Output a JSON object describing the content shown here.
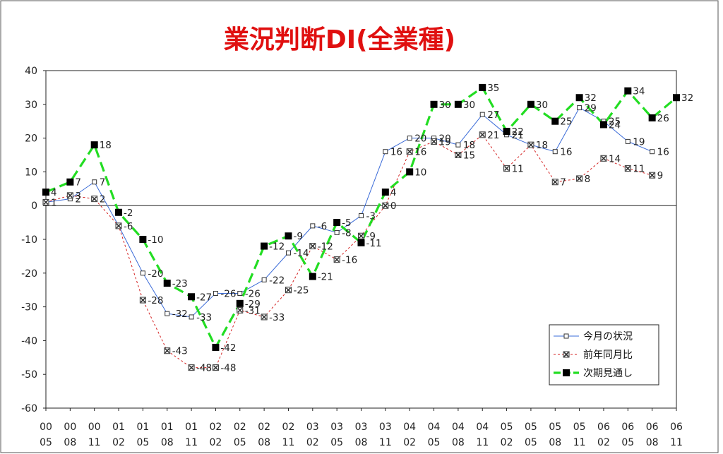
{
  "chart_data": {
    "type": "line",
    "title": "業況判断DI(全業種)",
    "title_color": "#e01010",
    "categories": [
      [
        "00",
        "05"
      ],
      [
        "00",
        "08"
      ],
      [
        "00",
        "11"
      ],
      [
        "01",
        "02"
      ],
      [
        "01",
        "05"
      ],
      [
        "01",
        "08"
      ],
      [
        "01",
        "11"
      ],
      [
        "02",
        "02"
      ],
      [
        "02",
        "05"
      ],
      [
        "02",
        "08"
      ],
      [
        "02",
        "11"
      ],
      [
        "03",
        "02"
      ],
      [
        "03",
        "05"
      ],
      [
        "03",
        "08"
      ],
      [
        "03",
        "11"
      ],
      [
        "04",
        "02"
      ],
      [
        "04",
        "05"
      ],
      [
        "04",
        "08"
      ],
      [
        "04",
        "11"
      ],
      [
        "05",
        "02"
      ],
      [
        "05",
        "05"
      ],
      [
        "05",
        "08"
      ],
      [
        "05",
        "11"
      ],
      [
        "06",
        "02"
      ],
      [
        "06",
        "05"
      ],
      [
        "06",
        "08"
      ],
      [
        "06",
        "11"
      ]
    ],
    "y_ticks": [
      "40",
      "30",
      "20",
      "10",
      "0",
      "-10",
      "-20",
      "-30",
      "-40",
      "-50",
      "-60"
    ],
    "ylim": [
      -60,
      40
    ],
    "y_step": 10,
    "grid": false,
    "legend_position": "bottom-right",
    "series": [
      {
        "name": "今月の状況",
        "color": "#3a6bd8",
        "line_style": "solid",
        "marker": "open-square",
        "values": [
          1,
          2,
          7,
          -6,
          -20,
          -32,
          -33,
          -26,
          -26,
          -22,
          -14,
          -6,
          -8,
          -3,
          16,
          20,
          20,
          18,
          27,
          21,
          18,
          16,
          29,
          25,
          19,
          16,
          null
        ],
        "labels": [
          "1",
          "2",
          "7",
          "-6",
          "-20",
          "-32",
          "-33",
          "-26",
          "-26",
          "-22",
          "-14",
          "-6",
          "-8",
          "-3",
          "16",
          "20",
          "20",
          "18",
          "27",
          "21",
          "18",
          "16",
          "29",
          "25",
          "19",
          "16",
          ""
        ]
      },
      {
        "name": "前年同月比",
        "color": "#d42020",
        "line_style": "dotted",
        "marker": "x-square",
        "values": [
          1,
          3,
          2,
          -6,
          -28,
          -43,
          -48,
          -48,
          -31,
          -33,
          -25,
          -12,
          -16,
          -9,
          0,
          16,
          19,
          15,
          21,
          11,
          18,
          7,
          8,
          14,
          11,
          9,
          null
        ],
        "labels": [
          "",
          "3",
          "2",
          "",
          "-28",
          "-43",
          "-48",
          "-48",
          "-31",
          "-33",
          "-25",
          "-12",
          "-16",
          "-9",
          "0",
          "16",
          "19",
          "15",
          "21",
          "11",
          "",
          "7",
          "8",
          "14",
          "11",
          "9",
          ""
        ]
      },
      {
        "name": "次期見通し",
        "color": "#22dd22",
        "line_style": "dashed",
        "marker": "filled-square",
        "values": [
          4,
          7,
          18,
          -2,
          -10,
          -23,
          -27,
          -42,
          -29,
          -12,
          -9,
          -21,
          -5,
          -11,
          4,
          10,
          30,
          30,
          35,
          22,
          30,
          25,
          32,
          24,
          34,
          26,
          32
        ],
        "labels": [
          "4",
          "7",
          "18",
          "-2",
          "-10",
          "-23",
          "-27",
          "-42",
          "-29",
          "-12",
          "-9",
          "-21",
          "-5",
          "-11",
          "4",
          "10",
          "30",
          "30",
          "35",
          "22",
          "30",
          "25",
          "32",
          "24",
          "34",
          "26",
          "32"
        ]
      }
    ]
  }
}
